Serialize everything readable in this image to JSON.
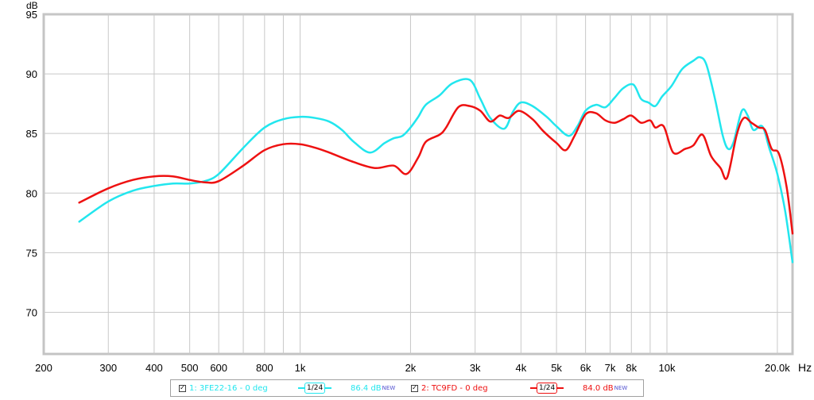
{
  "chart_data": {
    "type": "line",
    "ylabel": "dB",
    "xunit": "Hz",
    "xscale": "log",
    "xlim": [
      200,
      22000
    ],
    "ylim": [
      66.5,
      95
    ],
    "y_ticks": [
      95,
      90,
      85,
      80,
      75,
      70
    ],
    "x_ticks": [
      {
        "value": 200,
        "label": "200"
      },
      {
        "value": 300,
        "label": "300"
      },
      {
        "value": 400,
        "label": "400"
      },
      {
        "value": 500,
        "label": "500"
      },
      {
        "value": 600,
        "label": "600"
      },
      {
        "value": 800,
        "label": "800"
      },
      {
        "value": 1000,
        "label": "1k"
      },
      {
        "value": 2000,
        "label": "2k"
      },
      {
        "value": 3000,
        "label": "3k"
      },
      {
        "value": 4000,
        "label": "4k"
      },
      {
        "value": 5000,
        "label": "5k"
      },
      {
        "value": 6000,
        "label": "6k"
      },
      {
        "value": 7000,
        "label": "7k"
      },
      {
        "value": 8000,
        "label": "8k"
      },
      {
        "value": 10000,
        "label": "10k"
      },
      {
        "value": 20000,
        "label": "20.0k"
      }
    ],
    "minor_gridlines": [
      700,
      900,
      6000,
      7000,
      9000
    ],
    "grid": true,
    "series": [
      {
        "name": "1: 3FE22-16 - 0 deg",
        "color": "#22e6ee",
        "points": [
          [
            250,
            77.6
          ],
          [
            300,
            79.3
          ],
          [
            350,
            80.2
          ],
          [
            400,
            80.6
          ],
          [
            450,
            80.8
          ],
          [
            500,
            80.8
          ],
          [
            550,
            81.0
          ],
          [
            600,
            81.6
          ],
          [
            700,
            83.8
          ],
          [
            800,
            85.5
          ],
          [
            900,
            86.2
          ],
          [
            1000,
            86.4
          ],
          [
            1100,
            86.3
          ],
          [
            1200,
            86.0
          ],
          [
            1300,
            85.3
          ],
          [
            1400,
            84.3
          ],
          [
            1550,
            83.4
          ],
          [
            1700,
            84.2
          ],
          [
            1800,
            84.6
          ],
          [
            1900,
            84.8
          ],
          [
            2000,
            85.5
          ],
          [
            2100,
            86.4
          ],
          [
            2200,
            87.4
          ],
          [
            2400,
            88.2
          ],
          [
            2600,
            89.2
          ],
          [
            2900,
            89.5
          ],
          [
            3100,
            87.9
          ],
          [
            3300,
            86.3
          ],
          [
            3600,
            85.4
          ],
          [
            3800,
            86.8
          ],
          [
            4000,
            87.6
          ],
          [
            4300,
            87.3
          ],
          [
            4700,
            86.4
          ],
          [
            5000,
            85.6
          ],
          [
            5400,
            84.8
          ],
          [
            5700,
            85.6
          ],
          [
            6000,
            86.9
          ],
          [
            6400,
            87.4
          ],
          [
            6800,
            87.2
          ],
          [
            7200,
            88.0
          ],
          [
            7600,
            88.8
          ],
          [
            8100,
            89.1
          ],
          [
            8500,
            87.9
          ],
          [
            8900,
            87.6
          ],
          [
            9300,
            87.3
          ],
          [
            9700,
            88.1
          ],
          [
            10300,
            89.0
          ],
          [
            11000,
            90.4
          ],
          [
            11800,
            91.1
          ],
          [
            12300,
            91.4
          ],
          [
            12800,
            90.8
          ],
          [
            13500,
            88.0
          ],
          [
            14200,
            84.8
          ],
          [
            14700,
            83.7
          ],
          [
            15200,
            84.3
          ],
          [
            16000,
            86.9
          ],
          [
            16600,
            86.5
          ],
          [
            17200,
            85.3
          ],
          [
            18200,
            85.6
          ],
          [
            19000,
            83.8
          ],
          [
            20000,
            81.6
          ],
          [
            21000,
            78.5
          ],
          [
            22000,
            74.2
          ]
        ]
      },
      {
        "name": "2: TC9FD - 0 deg",
        "color": "#ee1111",
        "points": [
          [
            250,
            79.2
          ],
          [
            300,
            80.4
          ],
          [
            350,
            81.1
          ],
          [
            400,
            81.4
          ],
          [
            450,
            81.4
          ],
          [
            500,
            81.1
          ],
          [
            550,
            80.9
          ],
          [
            600,
            81.0
          ],
          [
            700,
            82.3
          ],
          [
            800,
            83.6
          ],
          [
            900,
            84.1
          ],
          [
            1000,
            84.1
          ],
          [
            1100,
            83.8
          ],
          [
            1200,
            83.4
          ],
          [
            1400,
            82.6
          ],
          [
            1600,
            82.1
          ],
          [
            1800,
            82.3
          ],
          [
            1950,
            81.6
          ],
          [
            2100,
            83.0
          ],
          [
            2200,
            84.3
          ],
          [
            2400,
            84.9
          ],
          [
            2500,
            85.5
          ],
          [
            2700,
            87.2
          ],
          [
            2900,
            87.3
          ],
          [
            3100,
            86.9
          ],
          [
            3300,
            86.0
          ],
          [
            3500,
            86.5
          ],
          [
            3700,
            86.3
          ],
          [
            3950,
            86.9
          ],
          [
            4300,
            86.2
          ],
          [
            4600,
            85.2
          ],
          [
            5000,
            84.2
          ],
          [
            5300,
            83.6
          ],
          [
            5600,
            84.8
          ],
          [
            6000,
            86.6
          ],
          [
            6400,
            86.7
          ],
          [
            6800,
            86.1
          ],
          [
            7200,
            85.9
          ],
          [
            7600,
            86.2
          ],
          [
            8000,
            86.5
          ],
          [
            8500,
            85.9
          ],
          [
            9000,
            86.1
          ],
          [
            9300,
            85.5
          ],
          [
            9800,
            85.6
          ],
          [
            10400,
            83.4
          ],
          [
            11200,
            83.7
          ],
          [
            11800,
            84.0
          ],
          [
            12500,
            84.9
          ],
          [
            13200,
            83.1
          ],
          [
            14000,
            82.1
          ],
          [
            14600,
            81.3
          ],
          [
            15500,
            84.9
          ],
          [
            16200,
            86.3
          ],
          [
            17000,
            85.9
          ],
          [
            17800,
            85.5
          ],
          [
            18500,
            85.3
          ],
          [
            19300,
            83.7
          ],
          [
            20200,
            83.3
          ],
          [
            21200,
            80.5
          ],
          [
            22000,
            76.6
          ]
        ]
      }
    ]
  },
  "legend": {
    "items": [
      {
        "label": "1: 3FE22-16 - 0 deg",
        "smoothing": "1/24",
        "level": "86.4 dB",
        "badge": "NEW",
        "color": "#22e6ee",
        "checked": "✓"
      },
      {
        "label": "2: TC9FD - 0 deg",
        "smoothing": "1/24",
        "level": "84.0 dB",
        "badge": "NEW",
        "color": "#ee1111",
        "checked": "✓"
      }
    ]
  }
}
